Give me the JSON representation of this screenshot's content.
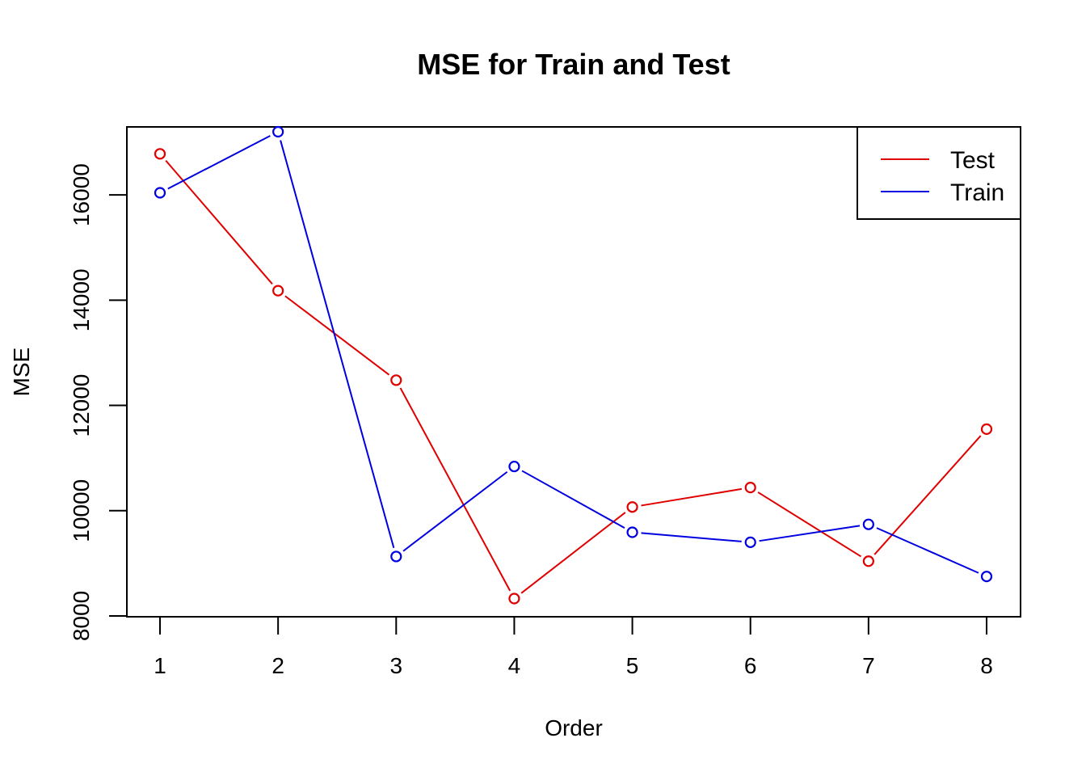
{
  "chart_data": {
    "type": "line",
    "title": "MSE for Train and Test",
    "xlabel": "Order",
    "ylabel": "MSE",
    "x": [
      1,
      2,
      3,
      4,
      5,
      6,
      7,
      8
    ],
    "xlim": [
      1,
      8
    ],
    "ylim": [
      8000,
      17000
    ],
    "x_ticks": [
      "1",
      "2",
      "3",
      "4",
      "5",
      "6",
      "7",
      "8"
    ],
    "y_ticks": [
      "8000",
      "10000",
      "12000",
      "14000",
      "16000"
    ],
    "grid": false,
    "legend_position": "top-right",
    "markers": "open-circle",
    "series": [
      {
        "name": "Test",
        "color": "#e00000",
        "values": [
          16780,
          14180,
          12480,
          8330,
          10070,
          10440,
          9040,
          11550
        ]
      },
      {
        "name": "Train",
        "color": "#0000e0",
        "values": [
          16040,
          17200,
          9130,
          10840,
          9590,
          9400,
          9740,
          8750
        ]
      }
    ]
  }
}
